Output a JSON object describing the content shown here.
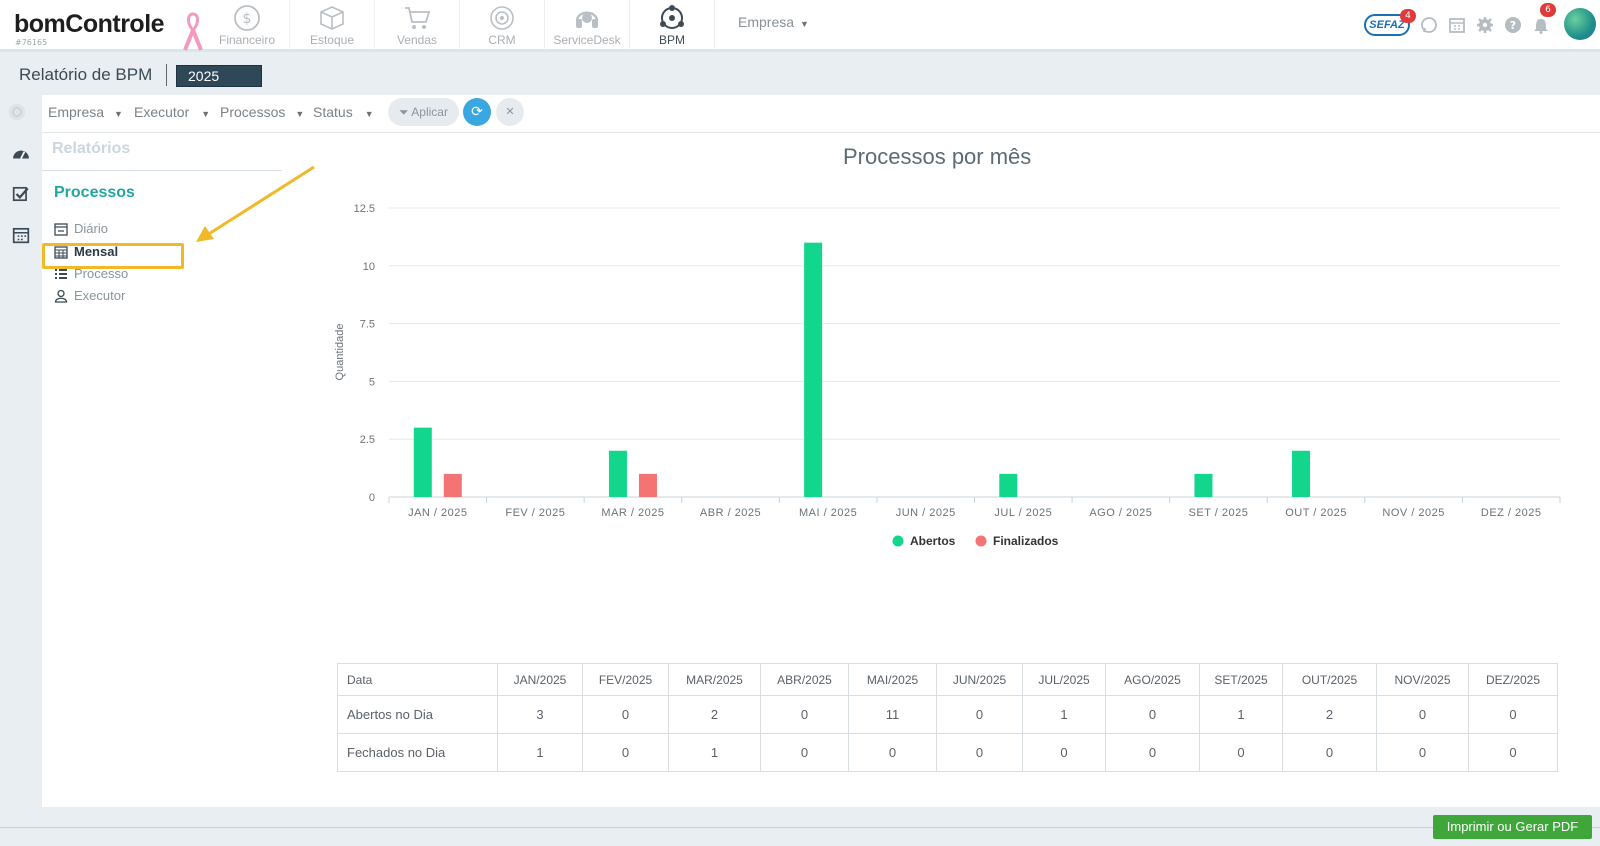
{
  "app": {
    "logo_text": "bomControle",
    "account_id": "#76165",
    "modules": [
      {
        "label": "Financeiro",
        "icon": "dollar-coin-icon"
      },
      {
        "label": "Estoque",
        "icon": "box-icon"
      },
      {
        "label": "Vendas",
        "icon": "cart-icon"
      },
      {
        "label": "CRM",
        "icon": "target-icon"
      },
      {
        "label": "ServiceDesk",
        "icon": "headset-icon"
      },
      {
        "label": "BPM",
        "icon": "bpm-network-icon"
      }
    ],
    "active_module": "BPM",
    "empresa_label": "Empresa",
    "sefaz_label": "SEFAZ",
    "sefaz_badge": "4",
    "notifications_badge": "6"
  },
  "page": {
    "title": "Relatório de BPM",
    "year": "2025"
  },
  "filters": {
    "empresa": "Empresa",
    "executor": "Executor",
    "processos": "Processos",
    "status": "Status",
    "apply_label": "Aplicar"
  },
  "sidebar": {
    "relatorios": "Relatórios",
    "section": "Processos",
    "items": [
      {
        "label": "Diário",
        "icon": "calendar-minus-icon"
      },
      {
        "label": "Mensal",
        "icon": "calendar-grid-icon",
        "active": true
      },
      {
        "label": "Processo",
        "icon": "list-icon"
      },
      {
        "label": "Executor",
        "icon": "user-icon"
      }
    ]
  },
  "chart_data": {
    "type": "bar",
    "title": "Processos por mês",
    "xlabel": "",
    "ylabel": "Quantidade",
    "ylim": [
      0,
      12.5
    ],
    "yticks": [
      "0",
      "2.5",
      "5",
      "7.5",
      "10",
      "12.5"
    ],
    "categories": [
      "JAN / 2025",
      "FEV / 2025",
      "MAR / 2025",
      "ABR / 2025",
      "MAI / 2025",
      "JUN / 2025",
      "JUL / 2025",
      "AGO / 2025",
      "SET / 2025",
      "OUT / 2025",
      "NOV / 2025",
      "DEZ / 2025"
    ],
    "series": [
      {
        "name": "Abertos",
        "color": "#12d68b",
        "values": [
          3,
          0,
          2,
          0,
          11,
          0,
          1,
          0,
          1,
          2,
          0,
          0
        ]
      },
      {
        "name": "Finalizados",
        "color": "#f47373",
        "values": [
          1,
          0,
          1,
          0,
          0,
          0,
          0,
          0,
          0,
          0,
          0,
          0
        ]
      }
    ],
    "grid": true,
    "legend": "bottom"
  },
  "table": {
    "header_label": "Data",
    "columns": [
      "JAN/2025",
      "FEV/2025",
      "MAR/2025",
      "ABR/2025",
      "MAI/2025",
      "JUN/2025",
      "JUL/2025",
      "AGO/2025",
      "SET/2025",
      "OUT/2025",
      "NOV/2025",
      "DEZ/2025"
    ],
    "rows": [
      {
        "label": "Abertos no Dia",
        "values": [
          "3",
          "0",
          "2",
          "0",
          "11",
          "0",
          "1",
          "0",
          "1",
          "2",
          "0",
          "0"
        ]
      },
      {
        "label": "Fechados no Dia",
        "values": [
          "1",
          "0",
          "1",
          "0",
          "0",
          "0",
          "0",
          "0",
          "0",
          "0",
          "0",
          "0"
        ]
      }
    ]
  },
  "footer": {
    "pdf_button": "Imprimir ou Gerar PDF"
  }
}
